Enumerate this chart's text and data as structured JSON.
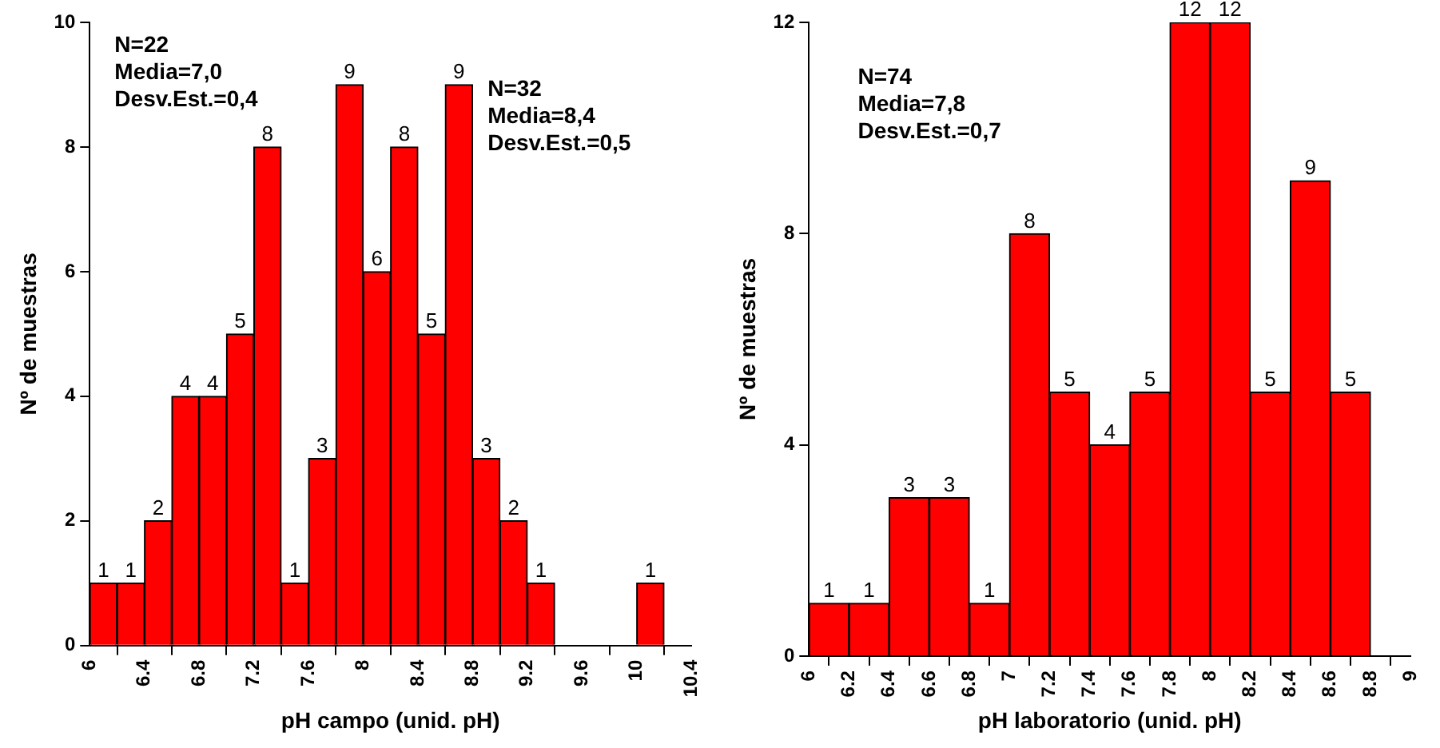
{
  "chart_data": [
    {
      "type": "histogram",
      "xlabel": "pH campo (unid. pH)",
      "ylabel": "Nº de muestras",
      "bins": [
        6,
        6.2,
        6.4,
        6.6,
        6.8,
        7,
        7.2,
        7.4,
        7.6,
        7.8,
        8,
        8.2,
        8.4,
        8.6,
        8.8,
        9,
        9.2,
        9.4,
        9.6,
        9.8,
        10,
        10.2
      ],
      "values": [
        1,
        1,
        2,
        4,
        4,
        5,
        8,
        1,
        3,
        9,
        6,
        8,
        5,
        9,
        3,
        2,
        1,
        0,
        0,
        0,
        1
      ],
      "value_labels": [
        "1",
        "1",
        "2",
        "4",
        "4",
        "5",
        "8",
        "1",
        "3",
        "9",
        "6",
        "8",
        "5",
        "9",
        "3",
        "2",
        "1",
        null,
        null,
        null,
        "1"
      ],
      "color": "#ff0000",
      "xlim": [
        6,
        10.4
      ],
      "xticks": [
        6,
        6.4,
        6.8,
        7.2,
        7.6,
        8,
        8.4,
        8.8,
        9.2,
        9.6,
        10,
        10.4
      ],
      "ylim": [
        0,
        10
      ],
      "yticks": [
        0,
        2,
        4,
        6,
        8,
        10
      ],
      "grid": false,
      "legend": false,
      "annotations": [
        "N=22\nMedia=7,0\nDesv.Est.=0,4",
        "N=32\nMedia=8,4\nDesv.Est.=0,5"
      ]
    },
    {
      "type": "histogram",
      "xlabel": "pH laboratorio (unid. pH)",
      "ylabel": "Nº de muestras",
      "bins": [
        6,
        6.2,
        6.4,
        6.6,
        6.8,
        7,
        7.2,
        7.4,
        7.6,
        7.8,
        8,
        8.2,
        8.4,
        8.6,
        8.8
      ],
      "values": [
        1,
        1,
        3,
        3,
        1,
        8,
        5,
        4,
        5,
        12,
        12,
        5,
        9,
        5
      ],
      "data_labels": true,
      "color": "#ff0000",
      "xlim": [
        6,
        9
      ],
      "xticks": [
        6,
        6.2,
        6.4,
        6.6,
        6.8,
        7,
        7.2,
        7.4,
        7.6,
        7.8,
        8,
        8.2,
        8.4,
        8.6,
        8.8,
        9
      ],
      "ylim": [
        0,
        12
      ],
      "yticks": [
        0,
        4,
        8,
        12
      ],
      "grid": false,
      "legend": false,
      "annotations": [
        "N=74\nMedia=7,8\nDesv.Est.=0,7"
      ]
    }
  ]
}
